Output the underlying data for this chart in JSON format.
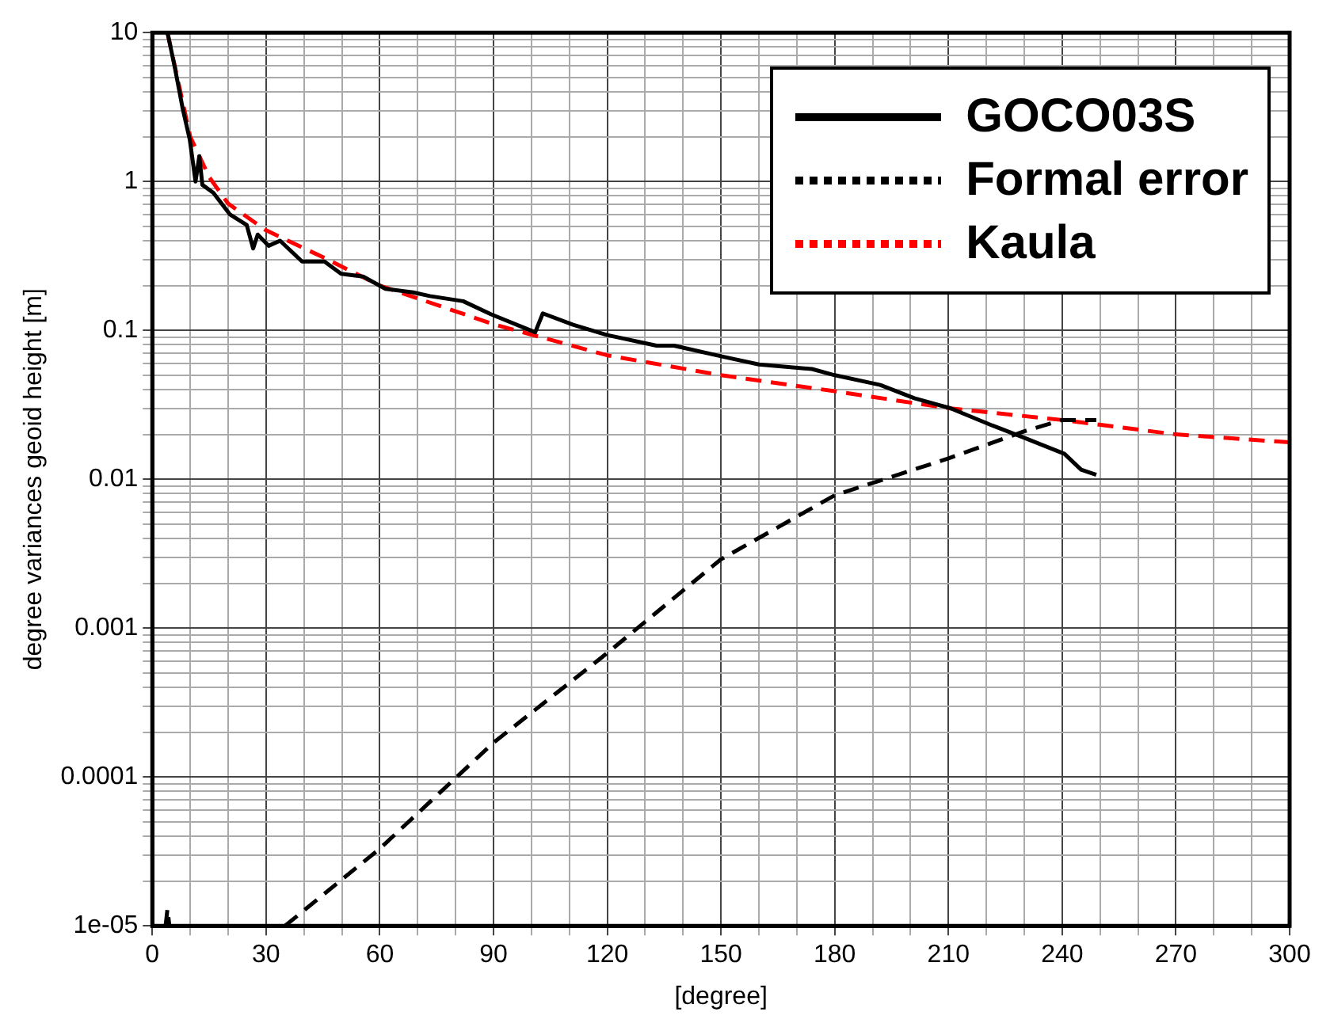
{
  "chart_data": {
    "type": "line",
    "xlabel": "[degree]",
    "ylabel": "degree variances geoid height [m]",
    "xlim": [
      0,
      300
    ],
    "xticks": [
      0,
      {
        "value": 10,
        "label": null
      },
      {
        "value": 20,
        "label": null
      },
      30,
      {
        "value": 40,
        "label": null
      },
      {
        "value": 50,
        "label": null
      },
      60,
      {
        "value": 70,
        "label": null
      },
      {
        "value": 80,
        "label": null
      },
      90,
      {
        "value": 100,
        "label": null
      },
      {
        "value": 110,
        "label": null
      },
      120,
      {
        "value": 130,
        "label": null
      },
      {
        "value": 140,
        "label": null
      },
      150,
      {
        "value": 160,
        "label": null
      },
      {
        "value": 170,
        "label": null
      },
      180,
      {
        "value": 190,
        "label": null
      },
      {
        "value": 200,
        "label": null
      },
      210,
      {
        "value": 220,
        "label": null
      },
      {
        "value": 230,
        "label": null
      },
      240,
      {
        "value": 250,
        "label": null
      },
      {
        "value": 260,
        "label": null
      },
      270,
      {
        "value": 280,
        "label": null
      },
      {
        "value": 290,
        "label": null
      },
      300
    ],
    "ylim": [
      1e-05,
      10
    ],
    "yticks": [
      {
        "value": 1e-05,
        "label": "1e-05"
      },
      {
        "value": 2e-05,
        "label": null
      },
      {
        "value": 3e-05,
        "label": null
      },
      {
        "value": 4e-05,
        "label": null
      },
      {
        "value": 5e-05,
        "label": null
      },
      {
        "value": 6e-05,
        "label": null
      },
      {
        "value": 7e-05,
        "label": null
      },
      {
        "value": 8e-05,
        "label": null
      },
      {
        "value": 9e-05,
        "label": null
      },
      {
        "value": 0.0001,
        "label": "0.0001"
      },
      {
        "value": 0.0002,
        "label": null
      },
      {
        "value": 0.0003,
        "label": null
      },
      {
        "value": 0.0004,
        "label": null
      },
      {
        "value": 0.0005,
        "label": null
      },
      {
        "value": 0.0006,
        "label": null
      },
      {
        "value": 0.0007,
        "label": null
      },
      {
        "value": 0.0008,
        "label": null
      },
      {
        "value": 0.0009,
        "label": null
      },
      {
        "value": 0.001,
        "label": "0.001"
      },
      {
        "value": 0.002,
        "label": null
      },
      {
        "value": 0.003,
        "label": null
      },
      {
        "value": 0.004,
        "label": null
      },
      {
        "value": 0.005,
        "label": null
      },
      {
        "value": 0.006,
        "label": null
      },
      {
        "value": 0.007,
        "label": null
      },
      {
        "value": 0.008,
        "label": null
      },
      {
        "value": 0.009,
        "label": null
      },
      {
        "value": 0.01,
        "label": "0.01"
      },
      {
        "value": 0.02,
        "label": null
      },
      {
        "value": 0.03,
        "label": null
      },
      {
        "value": 0.04,
        "label": null
      },
      {
        "value": 0.05,
        "label": null
      },
      {
        "value": 0.06,
        "label": null
      },
      {
        "value": 0.07,
        "label": null
      },
      {
        "value": 0.08,
        "label": null
      },
      {
        "value": 0.09,
        "label": null
      },
      {
        "value": 0.1,
        "label": "0.1"
      },
      {
        "value": 0.2,
        "label": null
      },
      {
        "value": 0.3,
        "label": null
      },
      {
        "value": 0.4,
        "label": null
      },
      {
        "value": 0.5,
        "label": null
      },
      {
        "value": 0.6,
        "label": null
      },
      {
        "value": 0.7,
        "label": null
      },
      {
        "value": 0.8,
        "label": null
      },
      {
        "value": 0.9,
        "label": null
      },
      {
        "value": 1,
        "label": "1"
      },
      {
        "value": 2,
        "label": null
      },
      {
        "value": 3,
        "label": null
      },
      {
        "value": 4,
        "label": null
      },
      {
        "value": 5,
        "label": null
      },
      {
        "value": 6,
        "label": null
      },
      {
        "value": 7,
        "label": null
      },
      {
        "value": 8,
        "label": null
      },
      {
        "value": 9,
        "label": null
      },
      {
        "value": 10,
        "label": "10"
      }
    ],
    "log": "y",
    "grid": true,
    "legend": "top right",
    "series": [
      {
        "name": "GOCO03S",
        "color": "#000000",
        "line_style": "solid",
        "x": [
          4,
          5.9,
          8,
          9.9,
          11.4,
          12.4,
          13.2,
          16.1,
          20.5,
          24.9,
          26.6,
          27.8,
          30.7,
          33.7,
          39.5,
          45.4,
          49.8,
          55.6,
          61.5,
          68.8,
          73.2,
          82,
          89.4,
          101,
          103,
          111,
          120,
          133,
          137.6,
          150,
          160,
          174,
          180,
          192,
          201,
          210.5,
          221.5,
          230,
          240.6,
          245,
          249
        ],
        "values": [
          10,
          5.9,
          3.1,
          1.9,
          1.0,
          1.48,
          0.95,
          0.84,
          0.6,
          0.51,
          0.355,
          0.44,
          0.37,
          0.4,
          0.29,
          0.29,
          0.24,
          0.23,
          0.19,
          0.18,
          0.17,
          0.157,
          0.128,
          0.097,
          0.13,
          0.109,
          0.093,
          0.079,
          0.079,
          0.067,
          0.059,
          0.055,
          0.05,
          0.043,
          0.035,
          0.03,
          0.023,
          0.019,
          0.0148,
          0.0116,
          0.0107
        ]
      },
      {
        "name": "Formal error",
        "color": "#000000",
        "line_style": "dashed",
        "x": [
          3.5,
          4,
          4.5,
          20,
          35,
          60,
          90,
          120,
          150,
          180,
          210,
          230,
          240,
          249
        ],
        "values": [
          1e-05,
          1.3e-05,
          1e-05,
          null,
          1e-05,
          3.3e-05,
          0.00017,
          0.00068,
          0.0029,
          0.0078,
          0.0138,
          0.021,
          0.025,
          0.025
        ]
      },
      {
        "name": "Kaula",
        "color": "#ff0000",
        "line_style": "dashed",
        "x": [
          4,
          10,
          15,
          20,
          30,
          45,
          60,
          90,
          120,
          150,
          180,
          210,
          240,
          270,
          300
        ],
        "values": [
          10,
          2.0,
          1.07,
          0.71,
          0.47,
          0.31,
          0.2,
          0.11,
          0.068,
          0.05,
          0.039,
          0.03,
          0.025,
          0.02,
          0.0177
        ]
      }
    ]
  }
}
